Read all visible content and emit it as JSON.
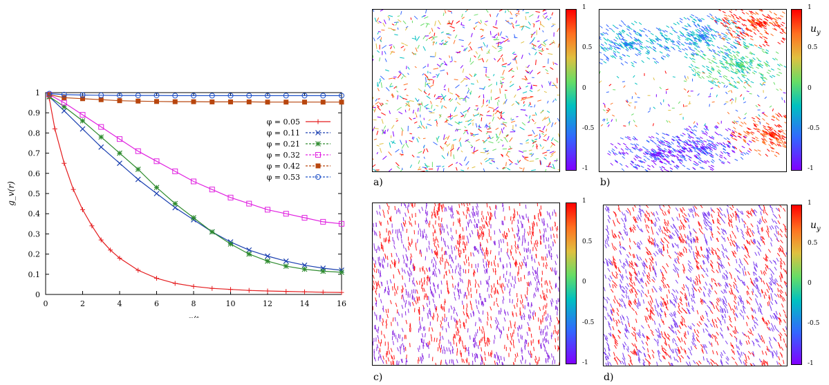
{
  "chart_data": [
    {
      "type": "line",
      "title": "",
      "xlabel": "r/ℓ",
      "ylabel": "g_v(r)",
      "xlim": [
        0,
        16
      ],
      "ylim": [
        0,
        1
      ],
      "xticks": [
        "0",
        "2",
        "4",
        "6",
        "8",
        "10",
        "12",
        "14",
        "16"
      ],
      "yticks": [
        "0",
        "0.1",
        "0.2",
        "0.3",
        "0.4",
        "0.5",
        "0.6",
        "0.7",
        "0.8",
        "0.9",
        "1"
      ],
      "grid": false,
      "legend_position": "right",
      "series": [
        {
          "name": "φ = 0.05",
          "color": "#e41a1c",
          "marker": "plus",
          "x": [
            0.2,
            0.5,
            1,
            1.5,
            2,
            2.5,
            3,
            3.5,
            4,
            5,
            6,
            7,
            8,
            9,
            10,
            11,
            12,
            13,
            14,
            15,
            16
          ],
          "y": [
            0.97,
            0.82,
            0.65,
            0.52,
            0.42,
            0.34,
            0.27,
            0.22,
            0.18,
            0.12,
            0.08,
            0.055,
            0.04,
            0.03,
            0.025,
            0.02,
            0.017,
            0.015,
            0.013,
            0.011,
            0.01
          ]
        },
        {
          "name": "φ = 0.11",
          "color": "#1a3fb0",
          "marker": "x",
          "x": [
            0.2,
            1,
            2,
            3,
            4,
            5,
            6,
            7,
            8,
            9,
            10,
            11,
            12,
            13,
            14,
            15,
            16
          ],
          "y": [
            0.98,
            0.91,
            0.82,
            0.73,
            0.65,
            0.57,
            0.5,
            0.43,
            0.37,
            0.31,
            0.26,
            0.22,
            0.19,
            0.165,
            0.145,
            0.13,
            0.12
          ]
        },
        {
          "name": "φ = 0.21",
          "color": "#2e8b2e",
          "marker": "star",
          "x": [
            0.2,
            1,
            2,
            3,
            4,
            5,
            6,
            7,
            8,
            9,
            10,
            11,
            12,
            13,
            14,
            15,
            16
          ],
          "y": [
            0.98,
            0.93,
            0.86,
            0.78,
            0.7,
            0.62,
            0.53,
            0.45,
            0.38,
            0.31,
            0.25,
            0.2,
            0.165,
            0.14,
            0.125,
            0.115,
            0.11
          ]
        },
        {
          "name": "φ = 0.32",
          "color": "#e020e0",
          "marker": "square",
          "x": [
            0.2,
            1,
            2,
            3,
            4,
            5,
            6,
            7,
            8,
            9,
            10,
            11,
            12,
            13,
            14,
            15,
            16
          ],
          "y": [
            0.99,
            0.95,
            0.89,
            0.83,
            0.77,
            0.71,
            0.66,
            0.61,
            0.56,
            0.52,
            0.48,
            0.45,
            0.42,
            0.4,
            0.38,
            0.36,
            0.35
          ]
        },
        {
          "name": "φ = 0.42",
          "color": "#b8460e",
          "marker": "filled-square",
          "x": [
            0.2,
            1,
            2,
            3,
            4,
            5,
            6,
            7,
            8,
            9,
            10,
            11,
            12,
            13,
            14,
            15,
            16
          ],
          "y": [
            0.99,
            0.975,
            0.97,
            0.965,
            0.96,
            0.958,
            0.956,
            0.955,
            0.955,
            0.954,
            0.954,
            0.954,
            0.953,
            0.953,
            0.953,
            0.953,
            0.953
          ]
        },
        {
          "name": "φ = 0.53",
          "color": "#1e50c8",
          "marker": "circle",
          "x": [
            0.2,
            1,
            2,
            3,
            4,
            5,
            6,
            7,
            8,
            9,
            10,
            11,
            12,
            13,
            14,
            15,
            16
          ],
          "y": [
            0.995,
            0.99,
            0.988,
            0.987,
            0.986,
            0.986,
            0.986,
            0.985,
            0.985,
            0.985,
            0.985,
            0.985,
            0.985,
            0.985,
            0.985,
            0.985,
            0.985
          ]
        }
      ]
    },
    {
      "type": "heatmap",
      "panels": [
        "a)",
        "b)",
        "c)",
        "d)"
      ],
      "colorbar": {
        "ticks": [
          "1",
          "0.5",
          "0",
          "-0.5",
          "-1"
        ],
        "label": "u_y",
        "range": [
          -1,
          1
        ],
        "colors": [
          "#8000ff",
          "#3366ff",
          "#00c0c0",
          "#66dd66",
          "#e0c040",
          "#ff7020",
          "#ff0000"
        ]
      }
    }
  ]
}
